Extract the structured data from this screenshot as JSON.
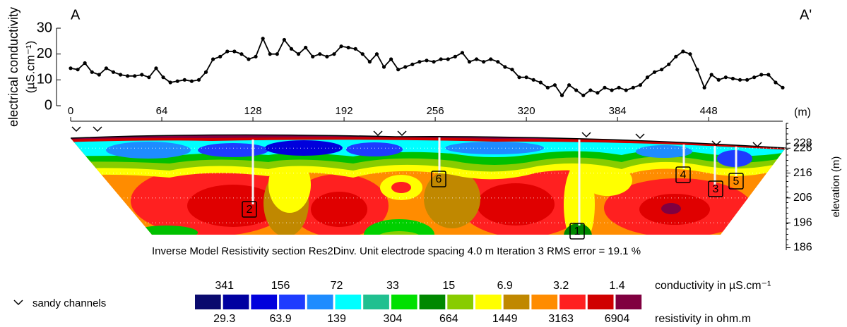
{
  "chart_data": [
    {
      "type": "line",
      "label_left": "A",
      "label_right": "A'",
      "y_label": "electrical conductivity",
      "y_unit": "(µS.cm⁻¹)",
      "x_unit": "(m)",
      "xlim": [
        0,
        500
      ],
      "ylim": [
        0,
        30
      ],
      "xticks": [
        0,
        64,
        128,
        192,
        256,
        320,
        384,
        448
      ],
      "yticks": [
        0,
        10,
        20,
        30
      ],
      "x": [
        0,
        5,
        10,
        15,
        20,
        25,
        30,
        35,
        40,
        45,
        50,
        55,
        60,
        65,
        70,
        75,
        80,
        85,
        90,
        95,
        100,
        105,
        110,
        115,
        120,
        125,
        130,
        135,
        140,
        145,
        150,
        155,
        160,
        165,
        170,
        175,
        180,
        185,
        190,
        195,
        200,
        205,
        210,
        215,
        220,
        225,
        230,
        235,
        240,
        245,
        250,
        255,
        260,
        265,
        270,
        275,
        280,
        285,
        290,
        295,
        300,
        305,
        310,
        315,
        320,
        325,
        330,
        335,
        340,
        345,
        350,
        355,
        360,
        365,
        370,
        375,
        380,
        385,
        390,
        395,
        400,
        405,
        410,
        415,
        420,
        425,
        430,
        435,
        440,
        445,
        450,
        455,
        460,
        465,
        470,
        475,
        480,
        485,
        490,
        495,
        500
      ],
      "series": [
        {
          "color": "#000000",
          "values": [
            14.5,
            14,
            16.5,
            13,
            12,
            14.5,
            13,
            12,
            11.5,
            11.5,
            12,
            11,
            14.5,
            11,
            9,
            9.5,
            10,
            9.5,
            10,
            13,
            18,
            19,
            21,
            21,
            20,
            18,
            19,
            26,
            20,
            20,
            25.5,
            22,
            20,
            22.5,
            19,
            20,
            19,
            20,
            23,
            22.5,
            22,
            20,
            17,
            20,
            15,
            18,
            14,
            15,
            16,
            17,
            17.5,
            17,
            18,
            18,
            19,
            20.5,
            17,
            18,
            17,
            18,
            17,
            15,
            14,
            11,
            11,
            10,
            9,
            7,
            8,
            4,
            8,
            6,
            4,
            6,
            5,
            7,
            6,
            7,
            6,
            7,
            8,
            11,
            13,
            14,
            16,
            19,
            21,
            20,
            14,
            7,
            12,
            10,
            11,
            10.5,
            10,
            10,
            11,
            12,
            12,
            9,
            7
          ]
        }
      ]
    },
    {
      "type": "section",
      "y_label": "elevation (m)",
      "ylim": [
        185,
        236
      ],
      "yticks": [
        186,
        196,
        206,
        216,
        226,
        228
      ],
      "caption": "Inverse Model Resistivity section  Res2Dinv.  Unit electrode spacing 4.0 m   Iteration 3 RMS error = 19.1 %",
      "markers": [
        "1",
        "2",
        "3",
        "4",
        "5",
        "6"
      ],
      "channel_label": "sandy channels",
      "color_scale": {
        "colors": [
          "#0a0a6e",
          "#0000a0",
          "#0000dc",
          "#1e3cff",
          "#1e8cff",
          "#00ffff",
          "#20c090",
          "#00e000",
          "#008800",
          "#88cc00",
          "#ffff00",
          "#c08800",
          "#ff8c00",
          "#ff2020",
          "#d00000",
          "#800040"
        ],
        "conductivity_values": [
          341,
          156,
          72,
          33,
          15,
          6.9,
          3.2,
          1.4
        ],
        "conductivity_label": "conductivity in µS.cm⁻¹",
        "resistivity_values": [
          29.3,
          63.9,
          139,
          304,
          664,
          1449,
          3163,
          6904
        ],
        "resistivity_label": "resistivity in ohm.m"
      }
    }
  ]
}
